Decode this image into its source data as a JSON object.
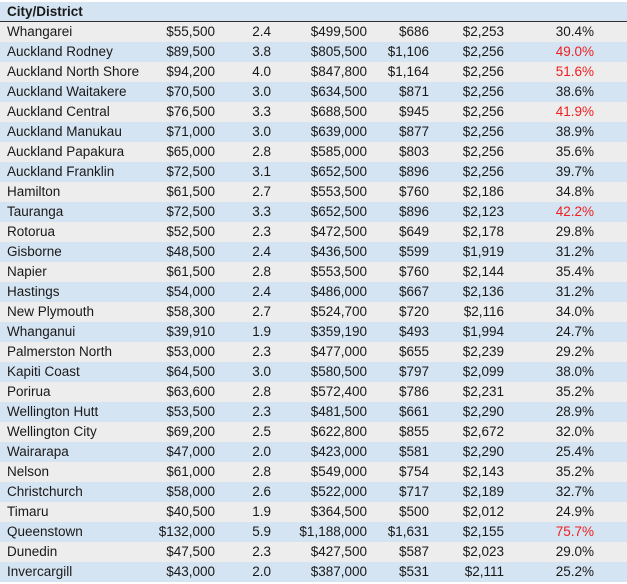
{
  "colors": {
    "row_gray": "#ededee",
    "row_blue": "#d5e4f2",
    "header_bg": "#d5e4f2",
    "header_border": "#2f2f2f",
    "text": "#191919",
    "alert_red": "#f01e1e"
  },
  "chart_data": {
    "type": "table",
    "header_label": "City/District",
    "columns_visible": [
      "City/District"
    ],
    "layout": {
      "banded_rows": true,
      "red_values_are_high_percentages": true
    },
    "rows": [
      {
        "name": "Whangarei",
        "values": [
          "$55,500",
          "2.4",
          "$499,500",
          "$686",
          "$2,253",
          "30.4%"
        ],
        "red_pct": false
      },
      {
        "name": "Auckland  Rodney",
        "values": [
          "$89,500",
          "3.8",
          "$805,500",
          "$1,106",
          "$2,256",
          "49.0%"
        ],
        "red_pct": true
      },
      {
        "name": "Auckland North Shore",
        "values": [
          "$94,200",
          "4.0",
          "$847,800",
          "$1,164",
          "$2,256",
          "51.6%"
        ],
        "red_pct": true
      },
      {
        "name": "Auckland Waitakere",
        "values": [
          "$70,500",
          "3.0",
          "$634,500",
          "$871",
          "$2,256",
          "38.6%"
        ],
        "red_pct": false
      },
      {
        "name": "Auckland Central",
        "values": [
          "$76,500",
          "3.3",
          "$688,500",
          "$945",
          "$2,256",
          "41.9%"
        ],
        "red_pct": true
      },
      {
        "name": "Auckland Manukau",
        "values": [
          "$71,000",
          "3.0",
          "$639,000",
          "$877",
          "$2,256",
          "38.9%"
        ],
        "red_pct": false
      },
      {
        "name": "Auckland Papakura",
        "values": [
          "$65,000",
          "2.8",
          "$585,000",
          "$803",
          "$2,256",
          "35.6%"
        ],
        "red_pct": false
      },
      {
        "name": "Auckland Franklin",
        "values": [
          "$72,500",
          "3.1",
          "$652,500",
          "$896",
          "$2,256",
          "39.7%"
        ],
        "red_pct": false
      },
      {
        "name": "Hamilton",
        "values": [
          "$61,500",
          "2.7",
          "$553,500",
          "$760",
          "$2,186",
          "34.8%"
        ],
        "red_pct": false
      },
      {
        "name": "Tauranga",
        "values": [
          "$72,500",
          "3.3",
          "$652,500",
          "$896",
          "$2,123",
          "42.2%"
        ],
        "red_pct": true
      },
      {
        "name": "Rotorua",
        "values": [
          "$52,500",
          "2.3",
          "$472,500",
          "$649",
          "$2,178",
          "29.8%"
        ],
        "red_pct": false
      },
      {
        "name": "Gisborne",
        "values": [
          "$48,500",
          "2.4",
          "$436,500",
          "$599",
          "$1,919",
          "31.2%"
        ],
        "red_pct": false
      },
      {
        "name": "Napier",
        "values": [
          "$61,500",
          "2.8",
          "$553,500",
          "$760",
          "$2,144",
          "35.4%"
        ],
        "red_pct": false
      },
      {
        "name": "Hastings",
        "values": [
          "$54,000",
          "2.4",
          "$486,000",
          "$667",
          "$2,136",
          "31.2%"
        ],
        "red_pct": false
      },
      {
        "name": "New Plymouth",
        "values": [
          "$58,300",
          "2.7",
          "$524,700",
          "$720",
          "$2,116",
          "34.0%"
        ],
        "red_pct": false
      },
      {
        "name": "Whanganui",
        "values": [
          "$39,910",
          "1.9",
          "$359,190",
          "$493",
          "$1,994",
          "24.7%"
        ],
        "red_pct": false
      },
      {
        "name": "Palmerston North",
        "values": [
          "$53,000",
          "2.3",
          "$477,000",
          "$655",
          "$2,239",
          "29.2%"
        ],
        "red_pct": false
      },
      {
        "name": "Kapiti Coast",
        "values": [
          "$64,500",
          "3.0",
          "$580,500",
          "$797",
          "$2,099",
          "38.0%"
        ],
        "red_pct": false
      },
      {
        "name": "Porirua",
        "values": [
          "$63,600",
          "2.8",
          "$572,400",
          "$786",
          "$2,231",
          "35.2%"
        ],
        "red_pct": false
      },
      {
        "name": "Wellington Hutt",
        "values": [
          "$53,500",
          "2.3",
          "$481,500",
          "$661",
          "$2,290",
          "28.9%"
        ],
        "red_pct": false
      },
      {
        "name": "Wellington City",
        "values": [
          "$69,200",
          "2.5",
          "$622,800",
          "$855",
          "$2,672",
          "32.0%"
        ],
        "red_pct": false
      },
      {
        "name": "Wairarapa",
        "values": [
          "$47,000",
          "2.0",
          "$423,000",
          "$581",
          "$2,290",
          "25.4%"
        ],
        "red_pct": false
      },
      {
        "name": "Nelson",
        "values": [
          "$61,000",
          "2.8",
          "$549,000",
          "$754",
          "$2,143",
          "35.2%"
        ],
        "red_pct": false
      },
      {
        "name": "Christchurch",
        "values": [
          "$58,000",
          "2.6",
          "$522,000",
          "$717",
          "$2,189",
          "32.7%"
        ],
        "red_pct": false
      },
      {
        "name": "Timaru",
        "values": [
          "$40,500",
          "1.9",
          "$364,500",
          "$500",
          "$2,012",
          "24.9%"
        ],
        "red_pct": false
      },
      {
        "name": "Queenstown",
        "values": [
          "$132,000",
          "5.9",
          "$1,188,000",
          "$1,631",
          "$2,155",
          "75.7%"
        ],
        "red_pct": true
      },
      {
        "name": "Dunedin",
        "values": [
          "$47,500",
          "2.3",
          "$427,500",
          "$587",
          "$2,023",
          "29.0%"
        ],
        "red_pct": false
      },
      {
        "name": "Invercargill",
        "values": [
          "$43,000",
          "2.0",
          "$387,000",
          "$531",
          "$2,111",
          "25.2%"
        ],
        "red_pct": false
      }
    ]
  }
}
